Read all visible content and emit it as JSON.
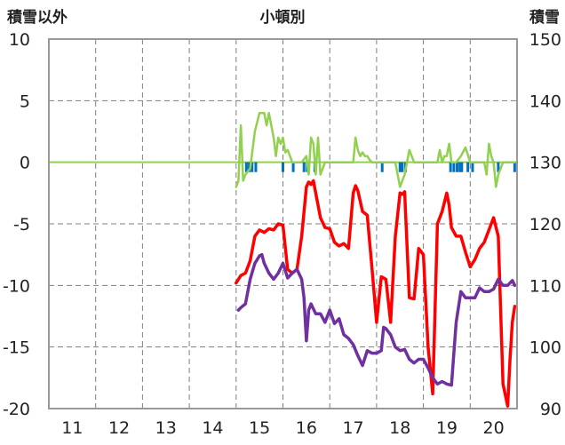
{
  "chart_data": {
    "type": "line",
    "title": "小頓別",
    "y_left_label": "積雪以外",
    "y_right_label": "積雪",
    "x_ticks": [
      "11",
      "12",
      "13",
      "14",
      "15",
      "16",
      "17",
      "18",
      "19",
      "20"
    ],
    "xlim": [
      10.5,
      20.5
    ],
    "y_left_ticks": [
      "10",
      "5",
      "0",
      "-5",
      "-10",
      "-15",
      "-20"
    ],
    "y_right_ticks": [
      "150",
      "140",
      "130",
      "120",
      "110",
      "100",
      "90"
    ],
    "ylim_left": [
      -20,
      10
    ],
    "ylim_right": [
      90,
      150
    ],
    "grid": true,
    "colors": {
      "red": "#ff0000",
      "purple": "#7030a0",
      "green": "#92d050",
      "blue": "#0070c0"
    },
    "series": [
      {
        "color": "#ff0000",
        "axis": "left",
        "x": [
          14.5,
          14.6,
          14.7,
          14.8,
          14.9,
          15.0,
          15.1,
          15.2,
          15.3,
          15.4,
          15.5,
          15.6,
          15.7,
          15.8,
          15.9,
          16.0,
          16.05,
          16.1,
          16.15,
          16.2,
          16.3,
          16.4,
          16.5,
          16.6,
          16.7,
          16.8,
          16.9,
          17.0,
          17.05,
          17.1,
          17.2,
          17.3,
          17.4,
          17.5,
          17.6,
          17.7,
          17.8,
          17.9,
          18.0,
          18.05,
          18.1,
          18.2,
          18.3,
          18.4,
          18.5,
          18.6,
          18.7,
          18.8,
          18.9,
          19.0,
          19.05,
          19.1,
          19.2,
          19.3,
          19.4,
          19.5,
          19.6,
          19.7,
          19.8,
          19.9,
          20.0,
          20.1,
          20.2,
          20.3,
          20.35,
          20.4,
          20.45
        ],
        "y": [
          -9.8,
          -9.2,
          -9.0,
          -8.0,
          -6.0,
          -5.5,
          -5.7,
          -5.4,
          -5.5,
          -5.0,
          -5.1,
          -8.7,
          -9.0,
          -8.7,
          -6.0,
          -2.0,
          -1.6,
          -1.8,
          -1.5,
          -2.5,
          -4.5,
          -5.3,
          -5.4,
          -6.5,
          -6.8,
          -6.6,
          -7.0,
          -2.5,
          -1.9,
          -2.3,
          -4.0,
          -4.3,
          -8.5,
          -13.0,
          -9.3,
          -9.5,
          -13.0,
          -6.0,
          -2.5,
          -2.6,
          -2.4,
          -11.0,
          -11.1,
          -7.0,
          -7.5,
          -15.0,
          -18.8,
          -5.0,
          -4.0,
          -2.5,
          -3.5,
          -5.3,
          -6.0,
          -6.0,
          -7.3,
          -8.5,
          -7.9,
          -7.0,
          -6.5,
          -5.5,
          -4.5,
          -6.0,
          -18.0,
          -19.8,
          -16.0,
          -13.0,
          -11.7
        ]
      },
      {
        "color": "#7030a0",
        "axis": "left",
        "x": [
          14.55,
          14.6,
          14.7,
          14.8,
          14.9,
          15.0,
          15.05,
          15.1,
          15.2,
          15.3,
          15.4,
          15.5,
          15.6,
          15.7,
          15.8,
          15.9,
          15.95,
          16.0,
          16.05,
          16.1,
          16.2,
          16.3,
          16.4,
          16.5,
          16.6,
          16.7,
          16.8,
          16.9,
          17.0,
          17.1,
          17.2,
          17.3,
          17.4,
          17.5,
          17.6,
          17.65,
          17.7,
          17.8,
          17.9,
          18.0,
          18.1,
          18.2,
          18.3,
          18.4,
          18.5,
          18.6,
          18.7,
          18.8,
          18.9,
          19.0,
          19.1,
          19.2,
          19.3,
          19.4,
          19.5,
          19.6,
          19.7,
          19.8,
          19.9,
          20.0,
          20.1,
          20.2,
          20.3,
          20.4,
          20.45
        ],
        "y": [
          -12.0,
          -11.8,
          -11.5,
          -9.5,
          -8.2,
          -7.6,
          -7.5,
          -8.2,
          -9.0,
          -9.5,
          -9.0,
          -8.2,
          -9.4,
          -9.0,
          -8.7,
          -9.5,
          -11.0,
          -14.5,
          -12.0,
          -11.5,
          -12.3,
          -12.3,
          -13.0,
          -12.0,
          -13.1,
          -12.7,
          -14.0,
          -14.3,
          -14.8,
          -15.7,
          -16.5,
          -15.3,
          -15.5,
          -15.5,
          -15.3,
          -13.4,
          -13.5,
          -14.0,
          -15.0,
          -15.3,
          -15.2,
          -16.0,
          -16.3,
          -16.0,
          -16.0,
          -16.7,
          -17.5,
          -18.0,
          -17.8,
          -18.0,
          -18.1,
          -13.0,
          -10.5,
          -11.0,
          -11.0,
          -11.0,
          -10.2,
          -10.5,
          -10.5,
          -10.3,
          -9.5,
          -10.0,
          -10.0,
          -9.6,
          -10.0
        ]
      },
      {
        "color": "#92d050",
        "axis": "left",
        "x": [
          14.5,
          14.55,
          14.6,
          14.65,
          14.7,
          14.8,
          14.9,
          15.0,
          15.1,
          15.15,
          15.2,
          15.3,
          15.35,
          15.4,
          15.45,
          15.5,
          15.55,
          15.6,
          15.65,
          15.7,
          15.8,
          15.9,
          16.0,
          16.05,
          16.1,
          16.15,
          16.2,
          16.25,
          16.3,
          16.4,
          16.5,
          16.6,
          16.7,
          16.8,
          16.9,
          17.0,
          17.05,
          17.1,
          17.15,
          17.2,
          17.25,
          17.3,
          17.35,
          17.4,
          17.5,
          17.6,
          17.7,
          17.8,
          17.9,
          17.95,
          18.0,
          18.05,
          18.1,
          18.2,
          18.3,
          18.4,
          18.5,
          18.6,
          18.7,
          18.8,
          18.85,
          18.9,
          18.95,
          19.0,
          19.05,
          19.1,
          19.2,
          19.3,
          19.4,
          19.5,
          19.6,
          19.7,
          19.8,
          19.85,
          19.9,
          19.95,
          20.0,
          20.05,
          20.1,
          20.15,
          20.2,
          20.3,
          20.4,
          20.45
        ],
        "y": [
          -2.0,
          -1.5,
          3.0,
          -1.5,
          -1.0,
          -0.5,
          2.5,
          4.0,
          4.0,
          3.0,
          4.0,
          2.0,
          0.5,
          2.0,
          1.5,
          2.0,
          0.8,
          1.0,
          0.5,
          0.0,
          0.0,
          0.0,
          0.5,
          -1.0,
          2.0,
          1.5,
          -1.0,
          2.0,
          -1.0,
          0.0,
          0.0,
          0.0,
          0.0,
          0.0,
          0.0,
          0.0,
          2.0,
          1.0,
          0.5,
          0.8,
          0.5,
          0.5,
          0.2,
          0.0,
          0.0,
          0.0,
          0.0,
          0.0,
          0.0,
          -1.0,
          -2.0,
          -1.5,
          -1.0,
          1.0,
          0.0,
          0.0,
          0.0,
          0.0,
          0.0,
          0.0,
          1.0,
          0.0,
          0.5,
          0.5,
          1.5,
          0.0,
          0.0,
          0.5,
          1.2,
          0.0,
          0.0,
          0.0,
          0.0,
          -1.0,
          1.5,
          0.5,
          0.0,
          -2.0,
          -1.0,
          -0.5,
          0.0,
          0.0,
          0.0,
          0.0
        ]
      },
      {
        "color": "#0070c0",
        "axis": "left",
        "type": "bar",
        "x": [
          14.72,
          14.78,
          14.84,
          14.92,
          15.5,
          15.72,
          15.95,
          16.02,
          16.18,
          17.62,
          18.0,
          18.05,
          18.12,
          19.08,
          19.15,
          19.22,
          19.28,
          19.32,
          19.45,
          19.55,
          20.1,
          20.45
        ],
        "y": [
          -0.8,
          -0.8,
          -0.8,
          -0.8,
          -0.8,
          -0.8,
          -0.8,
          -0.8,
          -0.8,
          -0.8,
          -0.8,
          -0.8,
          -0.8,
          -0.8,
          -0.8,
          -0.8,
          -0.8,
          -0.8,
          -0.8,
          -0.8,
          -0.8,
          -0.8
        ]
      }
    ]
  }
}
